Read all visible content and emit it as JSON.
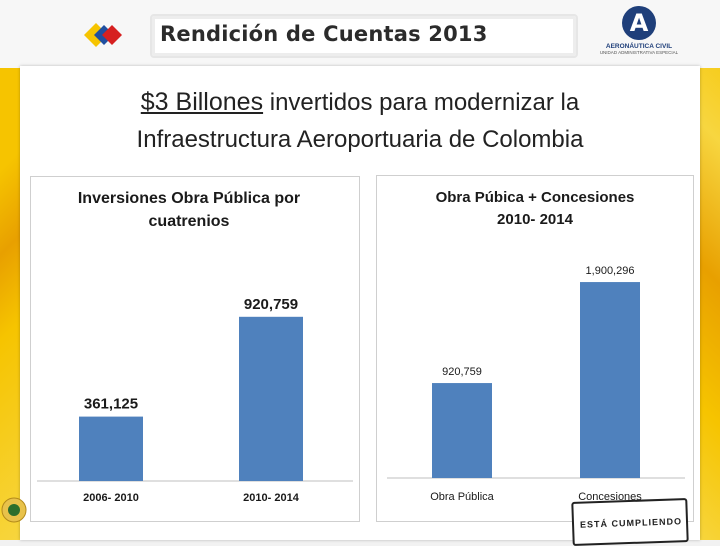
{
  "header": {
    "title": "Rendición de Cuentas 2013",
    "logo_line1": "AERONÁUTICA CIVIL",
    "logo_line2": "UNIDAD ADMINISTRATIVA ESPECIAL",
    "logo_letter": "A"
  },
  "headline": {
    "emphasis": "$3 Billones",
    "line1_rest": " invertidos para modernizar la",
    "line2": "Infraestructura Aeroportuaria de Colombia"
  },
  "stamp_text": "ESTÁ CUMPLIENDO",
  "colors": {
    "bar": "#4f81bd",
    "accent_yellow": "#f6c400",
    "logo_blue": "#1f3f7a"
  },
  "chart_data": [
    {
      "type": "bar",
      "title": "Inversiones Obra Pública por cuatrenios",
      "title_lines": [
        "Inversiones Obra Pública por",
        "cuatrenios"
      ],
      "categories": [
        "2006- 2010",
        "2010- 2014"
      ],
      "values": [
        361125,
        920759
      ],
      "value_labels": [
        "361,125",
        "920,759"
      ],
      "xlabel": "",
      "ylabel": "",
      "ylim": [
        0,
        1200000
      ],
      "grid": false,
      "legend": "none"
    },
    {
      "type": "bar",
      "title": "Obra Púbica + Concesiones 2010- 2014",
      "title_lines": [
        "Obra Púbica + Concesiones",
        "2010- 2014"
      ],
      "categories": [
        "Obra Pública",
        "Concesiones"
      ],
      "values": [
        920759,
        1900296
      ],
      "value_labels": [
        "920,759",
        "1,900,296"
      ],
      "xlabel": "",
      "ylabel": "",
      "ylim": [
        0,
        2250000
      ],
      "grid": false,
      "legend": "none"
    }
  ]
}
